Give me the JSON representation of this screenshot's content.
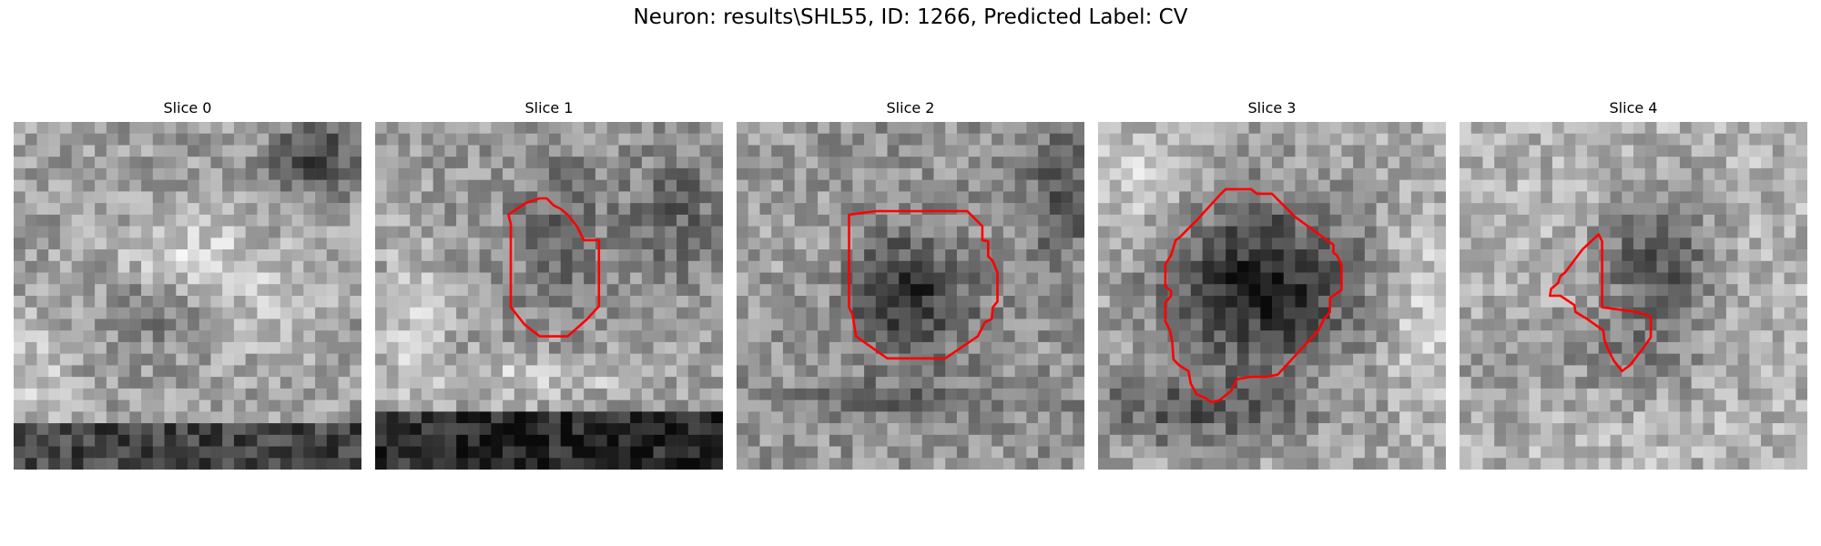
{
  "figure": {
    "title": "Neuron: results\\SHL55, ID: 1266, Predicted Label: CV"
  },
  "slices": [
    {
      "title": "Slice 0"
    },
    {
      "title": "Slice 1"
    },
    {
      "title": "Slice 2"
    },
    {
      "title": "Slice 3"
    },
    {
      "title": "Slice 4"
    }
  ],
  "colors": {
    "contour": "#ff0000"
  }
}
